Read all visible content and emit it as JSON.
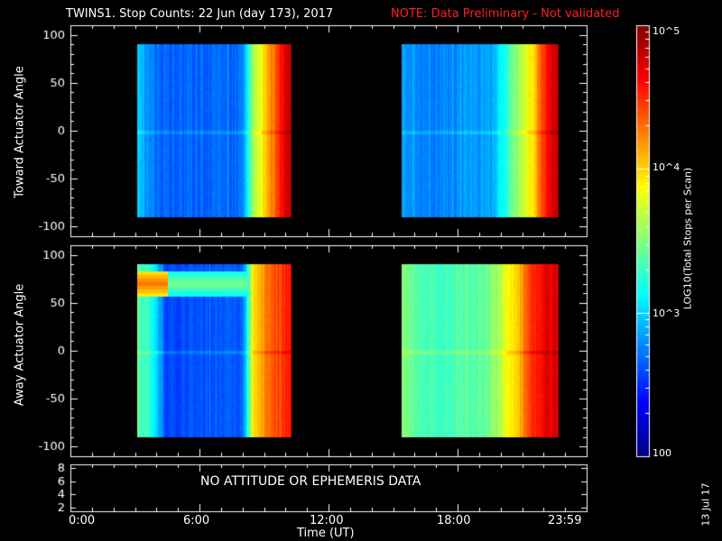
{
  "title": {
    "main": "TWINS1. Stop Counts: 22 Jun (day 173), 2017",
    "note": "NOTE: Data Preliminary - Not validated"
  },
  "panels": {
    "top_ylabel": "Toward Actuator Angle",
    "middle_ylabel": "Away Actuator Angle",
    "bottom_message": "NO ATTITUDE OR EPHEMERIS DATA"
  },
  "xaxis": {
    "label": "Time (UT)",
    "ticks": [
      "0:00",
      "6:00",
      "12:00",
      "18:00",
      "23:59"
    ]
  },
  "colorbar": {
    "label": "LOG10(Total Stops per Scan)",
    "ticks": [
      "10^5",
      "10^4",
      "10^3",
      "100"
    ]
  },
  "footer_date": "13 Jul 17",
  "colors": {
    "note": "#ff2020",
    "background": "#000000",
    "frame": "#ffffff"
  },
  "chart_data": [
    {
      "type": "heatmap",
      "name": "toward",
      "xlabel": "Time (UT)",
      "ylabel": "Toward Actuator Angle",
      "xlim_hours": [
        0,
        24
      ],
      "ylim": [
        -110,
        110
      ],
      "yticks": [
        100,
        50,
        0,
        -50,
        -100
      ],
      "angle_range": [
        -88,
        90
      ],
      "blocks": [
        {
          "t_start": 3.1,
          "t_end": 10.3
        },
        {
          "t_start": 15.4,
          "t_end": 22.7
        }
      ],
      "value_profile_log10": [
        [
          3.1,
          3.0
        ],
        [
          3.6,
          2.8
        ],
        [
          4.2,
          2.65
        ],
        [
          8.0,
          2.7
        ],
        [
          8.5,
          3.6
        ],
        [
          9.2,
          4.1
        ],
        [
          9.7,
          4.5
        ],
        [
          10.3,
          4.9
        ],
        [
          15.4,
          2.9
        ],
        [
          16.5,
          2.75
        ],
        [
          19.5,
          2.85
        ],
        [
          20.5,
          3.4
        ],
        [
          21.5,
          4.0
        ],
        [
          22.0,
          4.5
        ],
        [
          22.7,
          4.9
        ]
      ]
    },
    {
      "type": "heatmap",
      "name": "away",
      "xlabel": "Time (UT)",
      "ylabel": "Away Actuator Angle",
      "xlim_hours": [
        0,
        24
      ],
      "ylim": [
        -110,
        110
      ],
      "yticks": [
        100,
        50,
        0,
        -50,
        -100
      ],
      "angle_range": [
        -88,
        90
      ],
      "blocks": [
        {
          "t_start": 3.1,
          "t_end": 10.3
        },
        {
          "t_start": 15.4,
          "t_end": 22.7
        }
      ],
      "value_profile_log10": [
        [
          3.1,
          3.4
        ],
        [
          3.8,
          3.2
        ],
        [
          4.4,
          2.6
        ],
        [
          8.0,
          2.65
        ],
        [
          8.5,
          3.9
        ],
        [
          9.2,
          4.3
        ],
        [
          10.3,
          4.6
        ],
        [
          15.4,
          3.5
        ],
        [
          17.0,
          3.3
        ],
        [
          19.5,
          3.45
        ],
        [
          20.5,
          3.9
        ],
        [
          21.5,
          4.5
        ],
        [
          22.7,
          4.8
        ]
      ],
      "high_angle_band": {
        "angle": 72,
        "t_start": 3.1,
        "t_end": 8.2,
        "log10": 3.5
      }
    }
  ],
  "bottom_panel": {
    "yticks": [
      8,
      6,
      4,
      2
    ],
    "ylim": [
      1.5,
      8.5
    ]
  }
}
